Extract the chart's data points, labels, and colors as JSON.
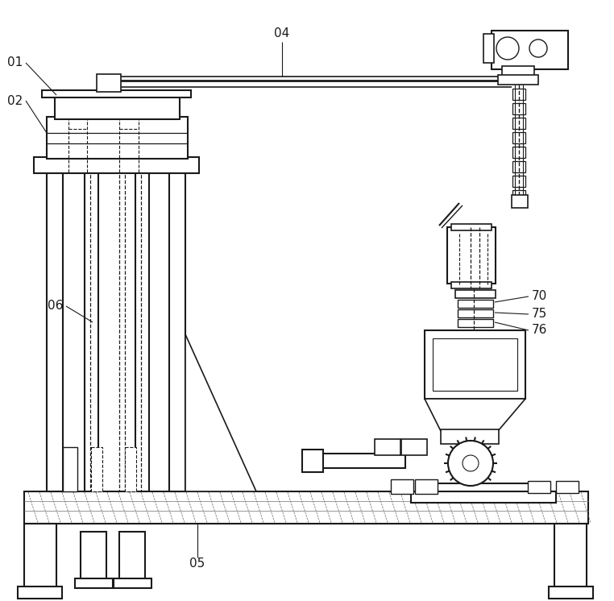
{
  "bg_color": "#ffffff",
  "line_color": "#1a1a1a",
  "figsize": [
    7.62,
    7.46
  ],
  "dpi": 100
}
